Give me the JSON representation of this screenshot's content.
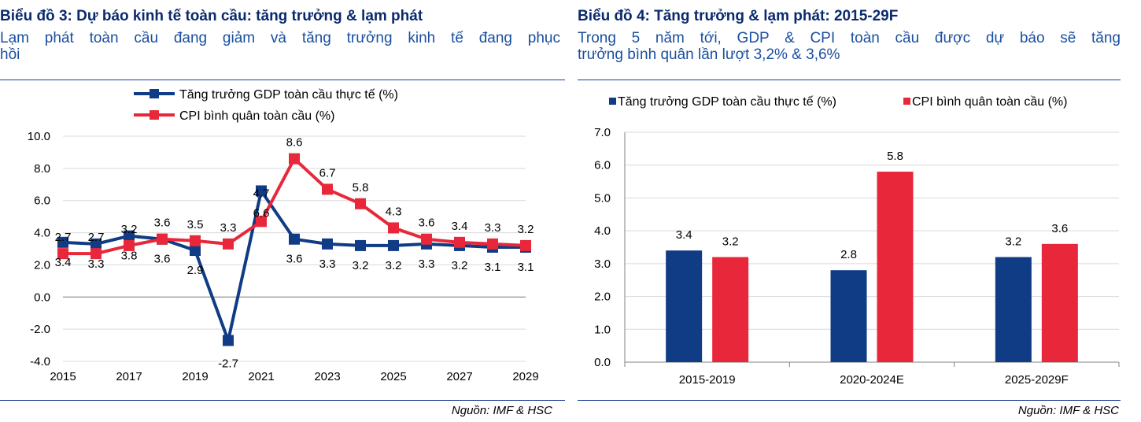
{
  "left": {
    "title": "Biểu đồ 3: Dự báo kinh tế toàn cầu: tăng trưởng & lạm phát",
    "subtitle_line1": "Lạm phát toàn cầu đang giảm và tăng trưởng kinh tế đang phục",
    "subtitle_line2": "hồi",
    "source": "Nguồn: IMF & HSC"
  },
  "right": {
    "title": "Biểu đồ 4: Tăng trưởng & lạm phát: 2015-29F",
    "subtitle_line1": "Trong 5 năm tới, GDP & CPI toàn cầu được dự báo sẽ tăng",
    "subtitle_line2": "trưởng bình quân lần lượt 3,2% & 3,6%",
    "source": "Nguồn: IMF & HSC"
  },
  "colors": {
    "gdp": "#0f3c84",
    "cpi": "#e8273a",
    "grid": "#d9d9d9",
    "axis": "#808080",
    "title": "#0a2a6e",
    "subtitle": "#1a4fa0"
  },
  "chart_data": [
    {
      "type": "line",
      "x": [
        2015,
        2016,
        2017,
        2018,
        2019,
        2020,
        2021,
        2022,
        2023,
        2024,
        2025,
        2026,
        2027,
        2028,
        2029
      ],
      "x_tick_labels": [
        "2015",
        "2017",
        "2019",
        "2021",
        "2023",
        "2025",
        "2027",
        "2029"
      ],
      "y_tick_labels": [
        "10.0",
        "8.0",
        "6.0",
        "4.0",
        "2.0",
        "0.0",
        "-2.0",
        "-4.0"
      ],
      "ylim": [
        -4,
        10
      ],
      "grid": true,
      "legend_position": "top",
      "series": [
        {
          "name": "Tăng trưởng GDP toàn cầu thực tế (%)",
          "values": [
            3.4,
            3.3,
            3.8,
            3.6,
            2.9,
            -2.7,
            6.6,
            3.6,
            3.3,
            3.2,
            3.2,
            3.3,
            3.2,
            3.1,
            3.1
          ],
          "labels": [
            "3.4",
            "3.3",
            "3.8",
            "3.6",
            "2.9",
            "-2.7",
            "6.6",
            "3.6",
            "3.3",
            "3.2",
            "3.2",
            "3.3",
            "3.2",
            "3.1",
            "3.1"
          ]
        },
        {
          "name": "CPI bình quân toàn cầu (%)",
          "values": [
            2.7,
            2.7,
            3.2,
            3.6,
            3.5,
            3.3,
            4.7,
            8.6,
            6.7,
            5.8,
            4.3,
            3.6,
            3.4,
            3.3,
            3.2
          ],
          "labels": [
            "2.7",
            "2.7",
            "3.2",
            "3.6",
            "3.5",
            "3.3",
            "4.7",
            "8.6",
            "6.7",
            "5.8",
            "4.3",
            "3.6",
            "3.4",
            "3.3",
            "3.2"
          ]
        }
      ]
    },
    {
      "type": "bar",
      "categories": [
        "2015-2019",
        "2020-2024E",
        "2025-2029F"
      ],
      "y_tick_labels": [
        "7.0",
        "6.0",
        "5.0",
        "4.0",
        "3.0",
        "2.0",
        "1.0",
        "0.0"
      ],
      "ylim": [
        0,
        7
      ],
      "grid": true,
      "legend_position": "top",
      "series": [
        {
          "name": "Tăng trưởng GDP toàn cầu thực tế (%)",
          "values": [
            3.4,
            2.8,
            3.2
          ],
          "labels": [
            "3.4",
            "2.8",
            "3.2"
          ]
        },
        {
          "name": "CPI bình quân toàn cầu (%)",
          "values": [
            3.2,
            5.8,
            3.6
          ],
          "labels": [
            "3.2",
            "5.8",
            "3.6"
          ]
        }
      ]
    }
  ]
}
